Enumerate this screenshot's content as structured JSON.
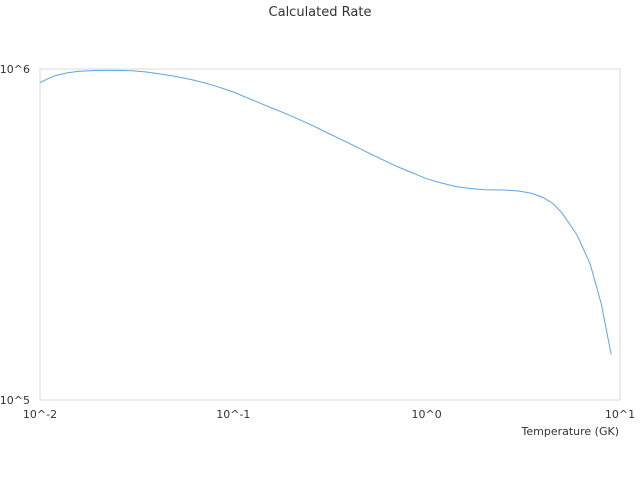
{
  "chart_data": {
    "type": "line",
    "title": "Calculated Rate",
    "xlabel": "Temperature (GK)",
    "ylabel": "",
    "x_scale": "log",
    "y_scale": "log",
    "xlim": [
      0.01,
      10
    ],
    "ylim": [
      100000,
      1000000
    ],
    "x_ticks": [
      {
        "value": 0.01,
        "label": "10^-2"
      },
      {
        "value": 0.1,
        "label": "10^-1"
      },
      {
        "value": 1,
        "label": "10^0"
      },
      {
        "value": 10,
        "label": "10^1"
      }
    ],
    "y_ticks": [
      {
        "value": 100000,
        "label": "10^5"
      },
      {
        "value": 1000000,
        "label": "10^6"
      }
    ],
    "grid": false,
    "legend": "none",
    "series_color": "#5aa5e6",
    "series": [
      {
        "x": [
          0.01,
          0.011,
          0.012,
          0.014,
          0.016,
          0.02,
          0.025,
          0.03,
          0.035,
          0.04,
          0.05,
          0.06,
          0.07,
          0.08,
          0.09,
          0.1,
          0.12,
          0.14,
          0.16,
          0.18,
          0.2,
          0.25,
          0.3,
          0.35,
          0.4,
          0.5,
          0.6,
          0.7,
          0.8,
          0.9,
          1.0,
          1.2,
          1.4,
          1.6,
          1.8,
          2.0,
          2.5,
          3.0,
          3.5,
          4.0,
          4.5,
          5.0,
          6.0,
          7.0,
          8.0,
          9.0
        ],
        "y": [
          910000,
          935000,
          955000,
          975000,
          985000,
          990000,
          990000,
          988000,
          980000,
          970000,
          950000,
          930000,
          910000,
          890000,
          870000,
          852000,
          815000,
          785000,
          760000,
          740000,
          720000,
          680000,
          645000,
          618000,
          595000,
          558000,
          530000,
          508000,
          492000,
          478000,
          466000,
          452000,
          442000,
          437000,
          434000,
          432000,
          431000,
          428000,
          421000,
          409000,
          392000,
          368000,
          315000,
          258000,
          195000,
          137000
        ]
      }
    ]
  }
}
